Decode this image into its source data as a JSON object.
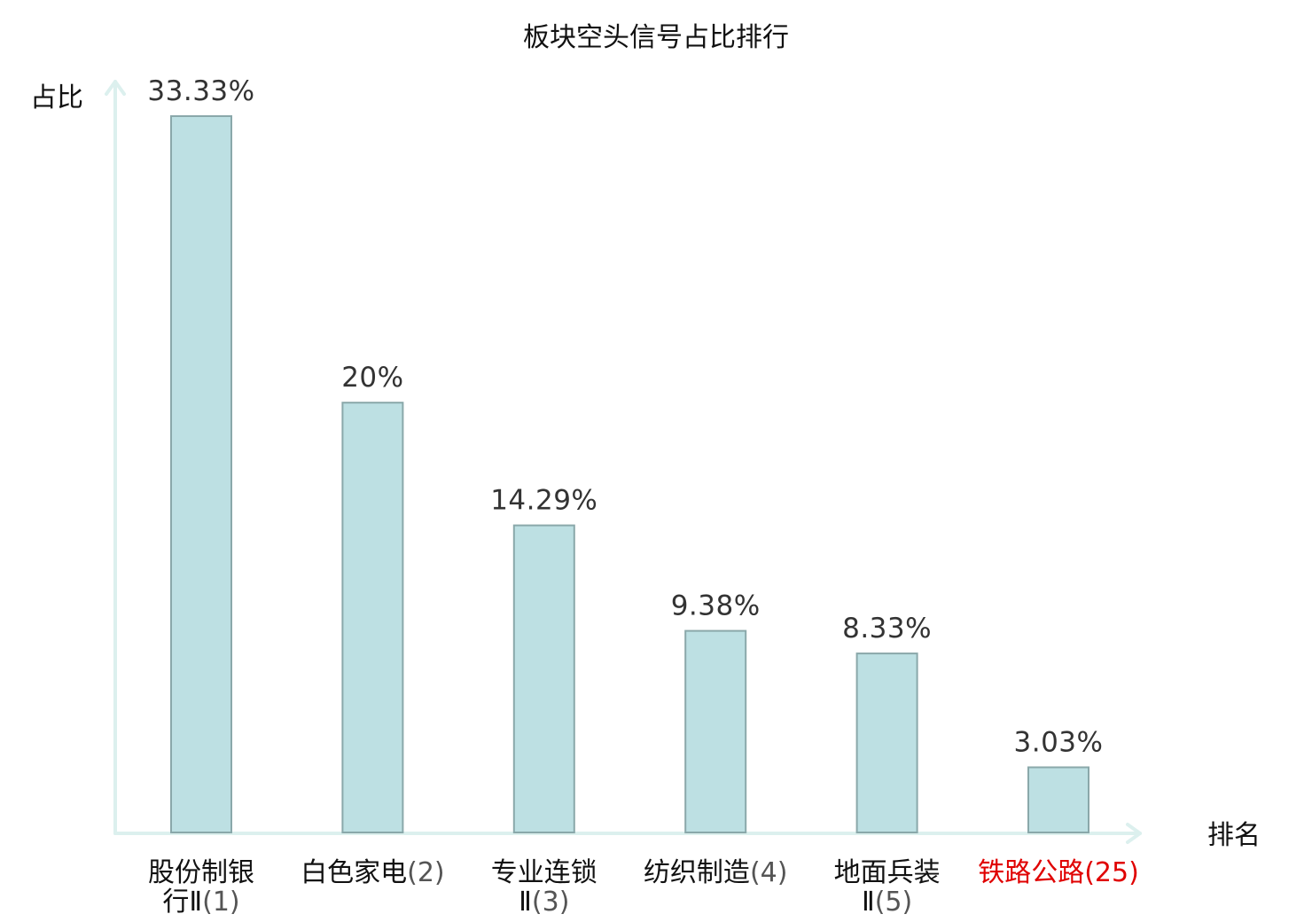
{
  "chart_data": {
    "type": "bar",
    "title": "板块空头信号占比排行",
    "ylabel": "占比",
    "xlabel": "排名",
    "ylim": [
      0,
      33.33
    ],
    "grid": false,
    "categories": [
      {
        "name": "股份制银行Ⅱ",
        "rank": "(1)",
        "lines": [
          "股份制银",
          "行Ⅱ"
        ],
        "highlight": false
      },
      {
        "name": "白色家电",
        "rank": "(2)",
        "lines": [
          "白色家电"
        ],
        "highlight": false
      },
      {
        "name": "专业连锁Ⅱ",
        "rank": "(3)",
        "lines": [
          "专业连锁",
          "Ⅱ"
        ],
        "highlight": false
      },
      {
        "name": "纺织制造",
        "rank": "(4)",
        "lines": [
          "纺织制造"
        ],
        "highlight": false
      },
      {
        "name": "地面兵装Ⅱ",
        "rank": "(5)",
        "lines": [
          "地面兵装",
          "Ⅱ"
        ],
        "highlight": false
      },
      {
        "name": "铁路公路",
        "rank": "(25)",
        "lines": [
          "铁路公路"
        ],
        "highlight": true
      }
    ],
    "values": [
      33.33,
      20,
      14.29,
      9.38,
      8.33,
      3.03
    ],
    "value_labels": [
      "33.33%",
      "20%",
      "14.29%",
      "9.38%",
      "8.33%",
      "3.03%"
    ]
  },
  "colors": {
    "bar_fill": "#bde0e3",
    "bar_stroke": "#8aa8aa",
    "axis": "#dcf0ee",
    "highlight": "#e00000"
  }
}
